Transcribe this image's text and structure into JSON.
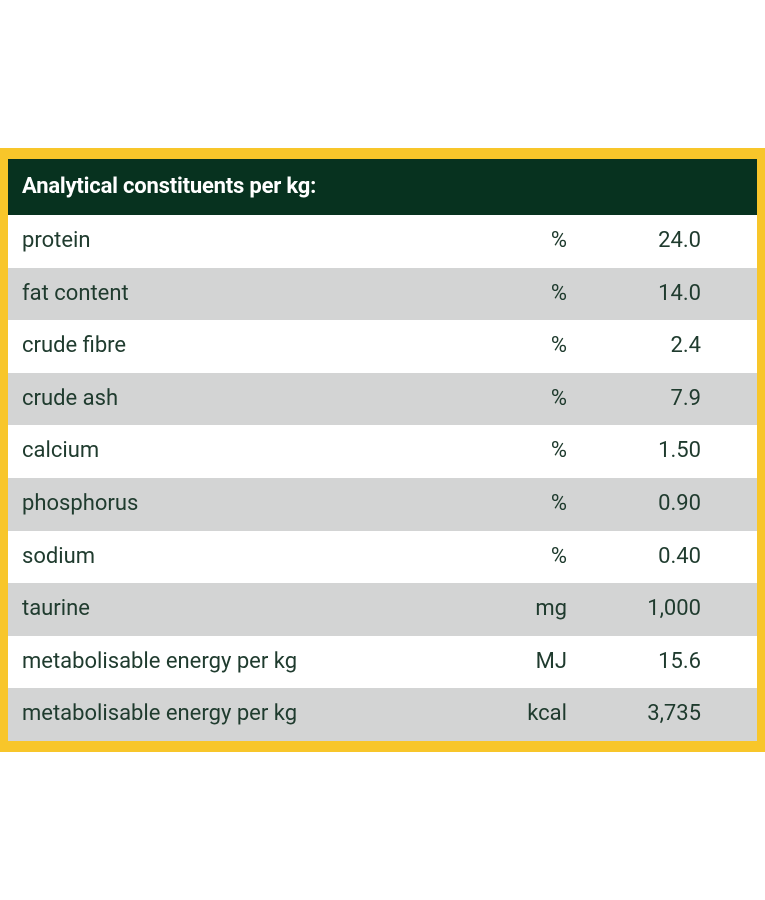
{
  "table": {
    "title": "Analytical constituents per kg:",
    "rows": [
      [
        "protein",
        "%",
        "24.0"
      ],
      [
        "fat content",
        "%",
        "14.0"
      ],
      [
        "crude fibre",
        "%",
        "2.4"
      ],
      [
        "crude ash",
        "%",
        "7.9"
      ],
      [
        "calcium",
        "%",
        "1.50"
      ],
      [
        "phosphorus",
        "%",
        "0.90"
      ],
      [
        "sodium",
        "%",
        "0.40"
      ],
      [
        "taurine",
        "mg",
        "1,000"
      ],
      [
        "metabolisable energy per kg",
        "MJ",
        "15.6"
      ],
      [
        "metabolisable energy per kg",
        "kcal",
        "3,735"
      ]
    ]
  }
}
